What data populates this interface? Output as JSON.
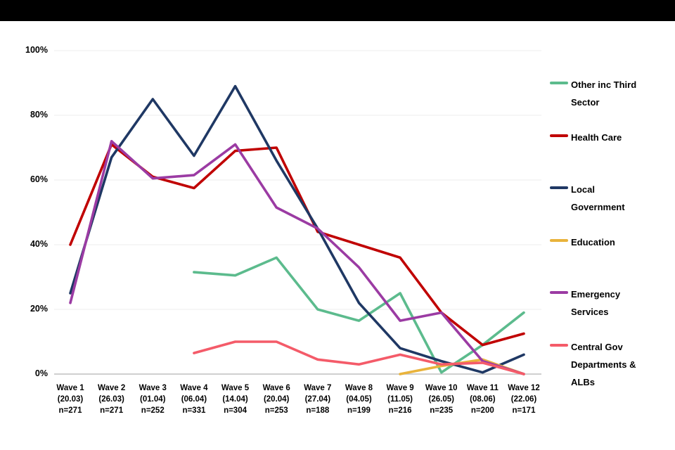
{
  "top_bar_color": "#000000",
  "chart_data": {
    "type": "line",
    "title": "",
    "xlabel": "",
    "ylabel": "",
    "ylim": [
      0,
      100
    ],
    "grid": true,
    "legend_position": "right",
    "yticks": [
      {
        "label": "0%",
        "value": 0
      },
      {
        "label": "20%",
        "value": 20
      },
      {
        "label": "40%",
        "value": 40
      },
      {
        "label": "60%",
        "value": 60
      },
      {
        "label": "80%",
        "value": 80
      },
      {
        "label": "100%",
        "value": 100
      }
    ],
    "categories": [
      {
        "wave": "Wave 1",
        "date": "(20.03)",
        "n": "n=271"
      },
      {
        "wave": "Wave 2",
        "date": "(26.03)",
        "n": "n=271"
      },
      {
        "wave": "Wave 3",
        "date": "(01.04)",
        "n": "n=252"
      },
      {
        "wave": "Wave 4",
        "date": "(06.04)",
        "n": "n=331"
      },
      {
        "wave": "Wave 5",
        "date": "(14.04)",
        "n": "n=304"
      },
      {
        "wave": "Wave 6",
        "date": "(20.04)",
        "n": "n=253"
      },
      {
        "wave": "Wave 7",
        "date": "(27.04)",
        "n": "n=188"
      },
      {
        "wave": "Wave 8",
        "date": "(04.05)",
        "n": "n=199"
      },
      {
        "wave": "Wave 9",
        "date": "(11.05)",
        "n": "n=216"
      },
      {
        "wave": "Wave 10",
        "date": "(26.05)",
        "n": "n=235"
      },
      {
        "wave": "Wave 11",
        "date": "(08.06)",
        "n": "n=200"
      },
      {
        "wave": "Wave 12",
        "date": "(22.06)",
        "n": "n=171"
      }
    ],
    "series": [
      {
        "name": "Other inc Third Sector",
        "color": "#5CBB8D",
        "values": [
          null,
          null,
          null,
          31.5,
          30.5,
          36,
          20,
          16.5,
          25,
          0.5,
          9,
          19
        ]
      },
      {
        "name": "Health Care",
        "color": "#C00000",
        "values": [
          40,
          71,
          61,
          57.5,
          69,
          70,
          44,
          40,
          36,
          19,
          9,
          12.5
        ]
      },
      {
        "name": "Local Government",
        "color": "#1F3864",
        "values": [
          25,
          67,
          85,
          67.5,
          89,
          66,
          45,
          22,
          8,
          4,
          0.5,
          6
        ]
      },
      {
        "name": "Education",
        "color": "#E9B33B",
        "values": [
          null,
          null,
          null,
          null,
          null,
          null,
          null,
          null,
          0,
          2.5,
          4.5,
          0
        ]
      },
      {
        "name": "Emergency Services",
        "color": "#9B3BA3",
        "values": [
          22,
          72,
          60.5,
          61.5,
          71,
          51.5,
          45,
          33,
          16.5,
          19,
          4,
          0
        ]
      },
      {
        "name": "Central Gov Departments & ALBs",
        "color": "#F45B69",
        "values": [
          null,
          null,
          null,
          6.5,
          10,
          10,
          4.5,
          3,
          6,
          3,
          3.5,
          0
        ]
      }
    ]
  }
}
